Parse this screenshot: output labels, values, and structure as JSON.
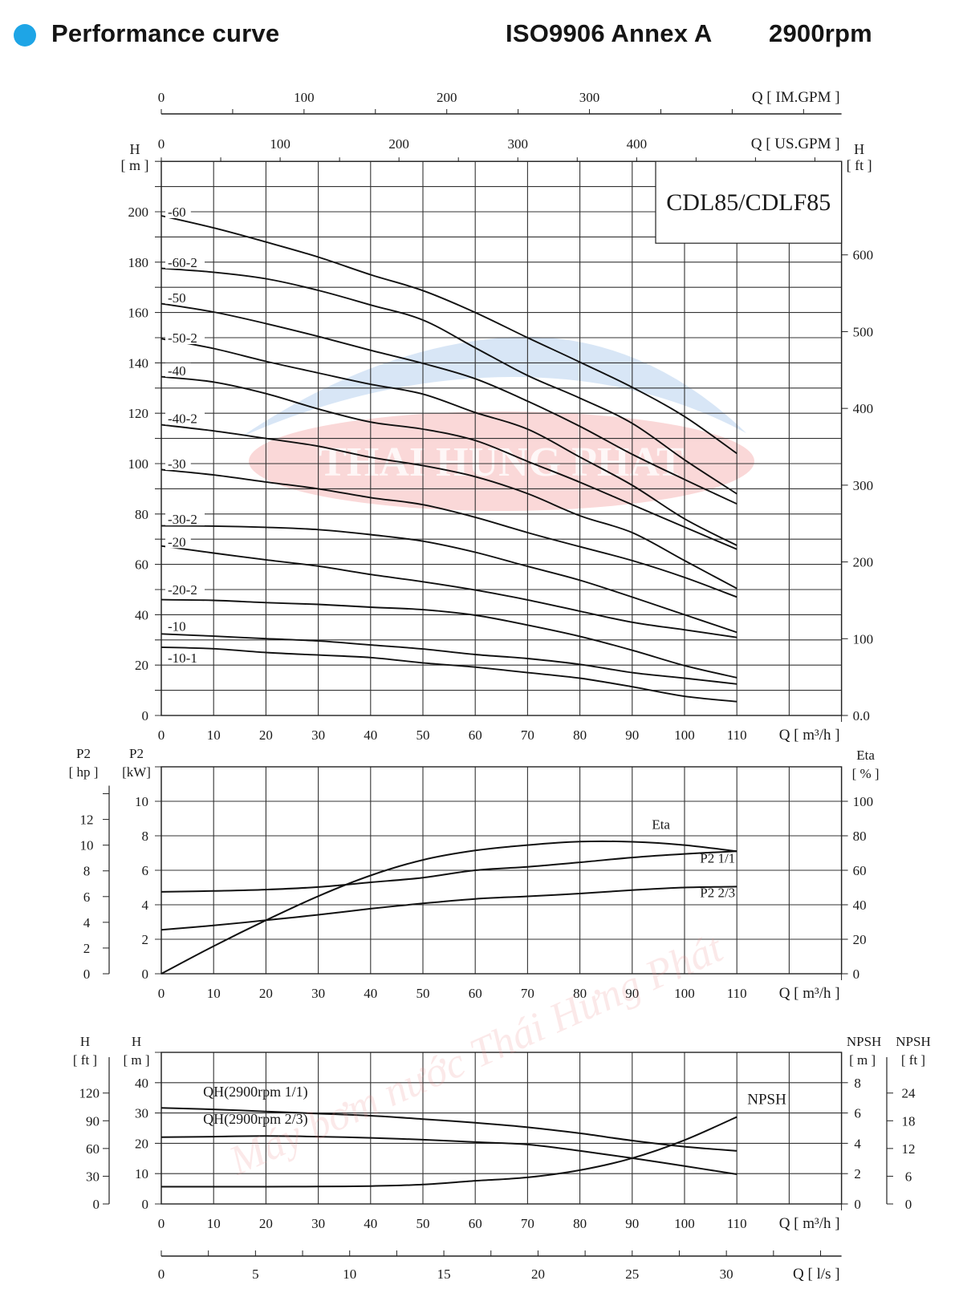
{
  "header": {
    "title": "Performance curve",
    "standard": "ISO9906 Annex A",
    "speed": "2900rpm",
    "bullet_color": "#1ea5e6"
  },
  "watermark": {
    "logo_text": "THAI HUNG PHAT",
    "text": "Máy bơm nước Thái Hưng Phát",
    "logo_color": "#f08f8f",
    "swoosh_color": "#a9c8ea"
  },
  "chart_data": [
    {
      "type": "line",
      "title": "CDL85/CDLF85",
      "grid": true,
      "x": {
        "label": "Q [ m³/h ]",
        "range": [
          0,
          130
        ],
        "ticks": [
          0,
          10,
          20,
          30,
          40,
          50,
          60,
          70,
          80,
          90,
          100,
          110
        ]
      },
      "x_top": [
        {
          "label": "Q [ IM.GPM ]",
          "ticks": [
            0,
            100,
            200,
            300
          ]
        },
        {
          "label": "Q [ US.GPM ]",
          "ticks": [
            0,
            100,
            200,
            300,
            400
          ]
        }
      ],
      "y": {
        "name": "H",
        "unit": "[ m ]",
        "range": [
          0,
          220
        ],
        "ticks": [
          0,
          20,
          40,
          60,
          80,
          100,
          120,
          140,
          160,
          180,
          200
        ]
      },
      "y_right": {
        "name": "H",
        "unit": "[ ft ]",
        "ticks": [
          "0.0",
          "100",
          "200",
          "300",
          "400",
          "500",
          "600"
        ]
      },
      "x_values": [
        0,
        10,
        20,
        30,
        40,
        50,
        60,
        70,
        80,
        90,
        100,
        110
      ],
      "series": [
        {
          "name": "-60",
          "values": [
            198.4,
            193.6,
            188,
            182,
            175,
            168.7,
            160,
            150,
            140.3,
            130.3,
            118.7,
            104
          ]
        },
        {
          "name": "-60-2",
          "values": [
            177.5,
            176,
            173.4,
            168.8,
            163,
            157,
            146,
            135,
            126,
            116,
            101.5,
            88
          ]
        },
        {
          "name": "-50",
          "values": [
            163.5,
            160.2,
            155.6,
            150.5,
            145,
            139.8,
            133.7,
            124.8,
            114.8,
            103.7,
            93.7,
            84
          ]
        },
        {
          "name": "-50-2",
          "values": [
            149.6,
            145.7,
            140.6,
            136,
            131.5,
            127.6,
            120.3,
            113.7,
            102.6,
            91.4,
            78.1,
            67.5
          ]
        },
        {
          "name": "-40",
          "values": [
            134.5,
            132.4,
            127.8,
            121.7,
            116.5,
            113.7,
            109.2,
            100.9,
            92.6,
            83.7,
            74.8,
            66
          ]
        },
        {
          "name": "-40-2",
          "values": [
            115.4,
            113,
            110,
            106.9,
            102.5,
            99.2,
            94.8,
            88.1,
            79.3,
            72.6,
            61.5,
            50.4
          ]
        },
        {
          "name": "-30",
          "values": [
            97.6,
            95.5,
            92.7,
            90,
            86.5,
            83.7,
            78.7,
            72.6,
            67,
            61.5,
            54.8,
            47
          ]
        },
        {
          "name": "-30-2",
          "values": [
            75.3,
            75.2,
            74.7,
            73.8,
            71.8,
            69.2,
            64.8,
            59.2,
            53.7,
            47,
            40,
            33
          ]
        },
        {
          "name": "-20",
          "values": [
            67.3,
            64.5,
            61.8,
            59.3,
            56,
            53.1,
            49.8,
            45.9,
            41.4,
            37,
            34,
            31
          ]
        },
        {
          "name": "-20-2",
          "values": [
            46,
            45.7,
            44.8,
            44.1,
            43,
            42,
            39.8,
            35.9,
            31.4,
            25.9,
            19.8,
            15
          ]
        },
        {
          "name": "-10",
          "values": [
            32.4,
            31.5,
            30.5,
            29.6,
            28,
            26.4,
            24.2,
            22.6,
            20.3,
            17,
            14.8,
            12.5
          ]
        },
        {
          "name": "-10-1",
          "values": [
            27.1,
            26.5,
            25,
            24,
            23,
            20.9,
            19.2,
            17,
            14.8,
            11.4,
            7.6,
            5.5
          ]
        }
      ]
    },
    {
      "type": "line",
      "grid": true,
      "x": {
        "label": "Q [ m³/h ]",
        "range": [
          0,
          130
        ],
        "ticks": [
          0,
          10,
          20,
          30,
          40,
          50,
          60,
          70,
          80,
          90,
          100,
          110
        ]
      },
      "y": {
        "name": "P2",
        "unit": "[kW]",
        "range": [
          0,
          12
        ],
        "ticks": [
          0,
          2,
          4,
          6,
          8,
          10
        ]
      },
      "y_left_outer": {
        "name": "P2",
        "unit": "[ hp ]",
        "ticks": [
          0,
          2,
          4,
          6,
          8,
          10,
          12
        ]
      },
      "y_right": {
        "name": "Eta",
        "unit": "[ % ]",
        "ticks": [
          0,
          20,
          40,
          60,
          80,
          100
        ]
      },
      "x_values": [
        0,
        10,
        20,
        30,
        40,
        50,
        60,
        70,
        80,
        90,
        100,
        110
      ],
      "series": [
        {
          "name": "Eta",
          "axis": "right",
          "values": [
            0,
            16,
            31,
            45,
            57,
            66,
            71.5,
            74.6,
            76.6,
            76.5,
            74.6,
            71
          ]
        },
        {
          "name": "P2  1/1",
          "axis": "left",
          "values": [
            4.75,
            4.8,
            4.88,
            5.03,
            5.3,
            5.57,
            6.0,
            6.2,
            6.46,
            6.74,
            6.95,
            7.1
          ]
        },
        {
          "name": "P2  2/3",
          "axis": "left",
          "values": [
            2.55,
            2.8,
            3.1,
            3.42,
            3.77,
            4.08,
            4.34,
            4.49,
            4.65,
            4.85,
            5.0,
            5.05
          ]
        }
      ]
    },
    {
      "type": "line",
      "grid": true,
      "x": {
        "label": "Q [ m³/h ]",
        "range": [
          0,
          130
        ],
        "ticks": [
          0,
          10,
          20,
          30,
          40,
          50,
          60,
          70,
          80,
          90,
          100,
          110
        ]
      },
      "x_bottom": {
        "label": "Q [ l/s ]",
        "ticks": [
          0,
          5,
          10,
          15,
          20,
          25,
          30
        ]
      },
      "y": {
        "name": "H",
        "unit": "[ m ]",
        "range": [
          0,
          50
        ],
        "ticks": [
          0,
          10,
          20,
          30,
          40
        ]
      },
      "y_left_outer": {
        "name": "H",
        "unit": "[ ft ]",
        "ticks": [
          0,
          30,
          60,
          90,
          120
        ]
      },
      "y_right": {
        "name": "NPSH",
        "unit": "[ m ]",
        "ticks": [
          0,
          2,
          4,
          6,
          8
        ]
      },
      "y_right_outer": {
        "name": "NPSH",
        "unit": "[ ft ]",
        "ticks": [
          0,
          6,
          12,
          18,
          24
        ]
      },
      "x_values": [
        0,
        10,
        20,
        30,
        40,
        50,
        60,
        70,
        80,
        90,
        100,
        110
      ],
      "series": [
        {
          "name": "QH(2900rpm 1/1)",
          "axis": "left",
          "values": [
            31.7,
            31.2,
            30.5,
            29.8,
            29.1,
            28,
            26.8,
            25.3,
            23.3,
            20.9,
            18.9,
            17.5
          ]
        },
        {
          "name": "QH(2900rpm 2/3)",
          "axis": "left",
          "values": [
            22,
            22.2,
            22.4,
            22.2,
            21.8,
            21.2,
            20.4,
            19.6,
            17.5,
            15.1,
            12.5,
            9.8
          ]
        },
        {
          "name": "NPSH",
          "axis": "right",
          "values": [
            1.14,
            1.14,
            1.14,
            1.15,
            1.18,
            1.28,
            1.53,
            1.75,
            2.23,
            3.02,
            4.21,
            5.74
          ]
        }
      ]
    }
  ]
}
